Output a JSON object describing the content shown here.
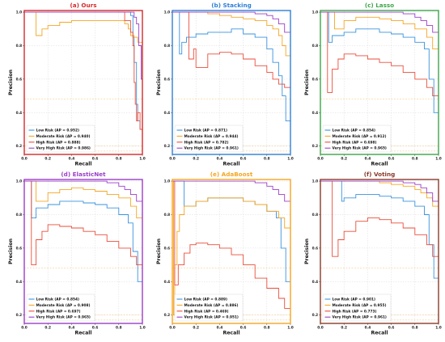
{
  "colors": {
    "low": "#3a93de",
    "moderate": "#f5a623",
    "high": "#ea4d3a",
    "very_high": "#9b3fc8",
    "grid": "#d9d9d9",
    "baseline": "#f2c27a"
  },
  "chart_data": [
    {
      "type": "line",
      "panel_title": "(a) Ours",
      "frame_color": "#d42a2a",
      "xlabel": "Recall",
      "ylabel": "Precision",
      "xlim": [
        0,
        1
      ],
      "ylim": [
        0.15,
        1.01
      ],
      "x_ticks": [
        "0.0",
        "0.2",
        "0.4",
        "0.6",
        "0.8",
        "1.0"
      ],
      "y_ticks": [
        "0.2",
        "0.4",
        "0.6",
        "0.8",
        "1.0"
      ],
      "grid": true,
      "legend_position": "lower-left",
      "series": [
        {
          "key": "low",
          "name": "Low Risk (AP = 0.952)",
          "x": [
            0.0,
            0.08,
            0.2,
            0.4,
            0.6,
            0.75,
            0.85,
            0.9,
            0.92,
            0.93,
            0.95,
            0.96,
            0.98,
            1.0
          ],
          "y": [
            1.0,
            1.0,
            1.0,
            1.0,
            1.0,
            1.0,
            1.0,
            0.98,
            0.85,
            0.7,
            0.45,
            0.35,
            0.3,
            0.27
          ]
        },
        {
          "key": "moderate",
          "name": "Moderate Risk (AP = 0.940)",
          "x": [
            0.0,
            0.07,
            0.1,
            0.15,
            0.2,
            0.3,
            0.4,
            0.5,
            0.6,
            0.7,
            0.8,
            0.85,
            0.88,
            0.9,
            0.93,
            0.96,
            1.0
          ],
          "y": [
            1.0,
            1.0,
            0.86,
            0.9,
            0.92,
            0.94,
            0.95,
            0.95,
            0.95,
            0.95,
            0.95,
            0.93,
            0.9,
            0.86,
            0.85,
            0.82,
            0.78
          ]
        },
        {
          "key": "high",
          "name": "High Risk (AP = 0.888)",
          "x": [
            0.0,
            0.2,
            0.4,
            0.6,
            0.75,
            0.85,
            0.9,
            0.92,
            0.93,
            0.94,
            0.95,
            0.96,
            0.98,
            1.0
          ],
          "y": [
            1.0,
            1.0,
            1.0,
            1.0,
            1.0,
            0.95,
            0.88,
            0.8,
            0.58,
            0.45,
            0.35,
            0.4,
            0.3,
            0.26
          ]
        },
        {
          "key": "very_high",
          "name": "Very High Risk (AP = 0.986)",
          "x": [
            0.0,
            0.2,
            0.4,
            0.6,
            0.8,
            0.9,
            0.93,
            0.95,
            0.97,
            0.99,
            1.0
          ],
          "y": [
            1.0,
            1.0,
            1.0,
            1.0,
            1.0,
            1.0,
            0.97,
            0.93,
            0.8,
            0.6,
            0.62
          ]
        }
      ]
    },
    {
      "type": "line",
      "panel_title": "(b) Stacking",
      "frame_color": "#2f7fd6",
      "xlabel": "Recall",
      "ylabel": "Precision",
      "xlim": [
        0,
        1
      ],
      "ylim": [
        0.15,
        1.01
      ],
      "x_ticks": [
        "0.0",
        "0.2",
        "0.4",
        "0.6",
        "0.8",
        "1.0"
      ],
      "y_ticks": [
        "0.2",
        "0.4",
        "0.6",
        "0.8",
        "1.0"
      ],
      "grid": true,
      "legend_position": "lower-left",
      "series": [
        {
          "key": "low",
          "name": "Low Risk (AP = 0.871)",
          "x": [
            0.0,
            0.04,
            0.06,
            0.08,
            0.12,
            0.2,
            0.3,
            0.4,
            0.5,
            0.6,
            0.7,
            0.8,
            0.85,
            0.9,
            0.93,
            0.96,
            1.0
          ],
          "y": [
            1.0,
            1.0,
            0.75,
            0.82,
            0.85,
            0.87,
            0.88,
            0.88,
            0.9,
            0.87,
            0.85,
            0.78,
            0.7,
            0.62,
            0.5,
            0.35,
            0.2
          ]
        },
        {
          "key": "moderate",
          "name": "Moderate Risk (AP = 0.944)",
          "x": [
            0.0,
            0.1,
            0.2,
            0.3,
            0.4,
            0.5,
            0.6,
            0.7,
            0.8,
            0.85,
            0.9,
            0.93,
            0.96,
            1.0
          ],
          "y": [
            1.0,
            1.0,
            1.0,
            0.99,
            0.98,
            0.97,
            0.96,
            0.95,
            0.92,
            0.9,
            0.86,
            0.8,
            0.74,
            0.68
          ]
        },
        {
          "key": "high",
          "name": "High Risk (AP = 0.782)",
          "x": [
            0.0,
            0.12,
            0.14,
            0.18,
            0.2,
            0.3,
            0.4,
            0.5,
            0.6,
            0.7,
            0.8,
            0.85,
            0.9,
            0.95,
            1.0
          ],
          "y": [
            1.0,
            1.0,
            0.72,
            0.78,
            0.67,
            0.75,
            0.76,
            0.75,
            0.72,
            0.68,
            0.64,
            0.6,
            0.57,
            0.55,
            0.45
          ]
        },
        {
          "key": "very_high",
          "name": "Very High Risk (AP = 0.961)",
          "x": [
            0.0,
            0.2,
            0.4,
            0.6,
            0.7,
            0.8,
            0.85,
            0.9,
            0.95,
            1.0
          ],
          "y": [
            1.0,
            1.0,
            1.0,
            1.0,
            0.99,
            0.98,
            0.96,
            0.93,
            0.88,
            0.8
          ]
        }
      ]
    },
    {
      "type": "line",
      "panel_title": "(c) Lasso",
      "frame_color": "#3ca64a",
      "xlabel": "Recall",
      "ylabel": "Precision",
      "xlim": [
        0,
        1
      ],
      "ylim": [
        0.15,
        1.01
      ],
      "x_ticks": [
        "0.0",
        "0.2",
        "0.4",
        "0.6",
        "0.8",
        "1.0"
      ],
      "y_ticks": [
        "0.2",
        "0.4",
        "0.6",
        "0.8",
        "1.0"
      ],
      "grid": true,
      "legend_position": "lower-left",
      "series": [
        {
          "key": "low",
          "name": "Low Risk (AP = 0.854)",
          "x": [
            0.0,
            0.05,
            0.07,
            0.1,
            0.2,
            0.3,
            0.4,
            0.5,
            0.6,
            0.7,
            0.8,
            0.88,
            0.92,
            0.96,
            1.0
          ],
          "y": [
            1.0,
            1.0,
            0.82,
            0.86,
            0.88,
            0.9,
            0.9,
            0.88,
            0.87,
            0.85,
            0.82,
            0.78,
            0.6,
            0.4,
            0.27
          ]
        },
        {
          "key": "moderate",
          "name": "Moderate Risk (AP = 0.912)",
          "x": [
            0.0,
            0.08,
            0.12,
            0.2,
            0.3,
            0.4,
            0.5,
            0.6,
            0.7,
            0.8,
            0.9,
            0.95,
            1.0
          ],
          "y": [
            1.0,
            1.0,
            0.9,
            0.95,
            0.97,
            0.97,
            0.96,
            0.95,
            0.93,
            0.9,
            0.85,
            0.78,
            0.66
          ]
        },
        {
          "key": "high",
          "name": "High Risk (AP = 0.698)",
          "x": [
            0.0,
            0.04,
            0.06,
            0.1,
            0.15,
            0.2,
            0.3,
            0.4,
            0.5,
            0.6,
            0.7,
            0.8,
            0.9,
            0.95,
            1.0
          ],
          "y": [
            1.0,
            1.0,
            0.52,
            0.66,
            0.72,
            0.75,
            0.74,
            0.72,
            0.7,
            0.68,
            0.64,
            0.6,
            0.55,
            0.5,
            0.38
          ]
        },
        {
          "key": "very_high",
          "name": "Very High Risk (AP = 0.965)",
          "x": [
            0.0,
            0.2,
            0.4,
            0.6,
            0.7,
            0.8,
            0.85,
            0.9,
            0.95,
            1.0
          ],
          "y": [
            1.0,
            1.0,
            1.0,
            1.0,
            0.99,
            0.97,
            0.95,
            0.92,
            0.88,
            0.82
          ]
        }
      ]
    },
    {
      "type": "line",
      "panel_title": "(d) ElasticNet",
      "frame_color": "#9b3fc8",
      "xlabel": "Recall",
      "ylabel": "Precision",
      "xlim": [
        0,
        1
      ],
      "ylim": [
        0.15,
        1.01
      ],
      "x_ticks": [
        "0.0",
        "0.2",
        "0.4",
        "0.6",
        "0.8",
        "1.0"
      ],
      "y_ticks": [
        "0.2",
        "0.4",
        "0.6",
        "0.8",
        "1.0"
      ],
      "grid": true,
      "legend_position": "lower-left",
      "series": [
        {
          "key": "low",
          "name": "Low Risk (AP = 0.854)",
          "x": [
            0.0,
            0.04,
            0.06,
            0.1,
            0.2,
            0.3,
            0.4,
            0.5,
            0.6,
            0.7,
            0.8,
            0.88,
            0.92,
            0.96,
            1.0
          ],
          "y": [
            1.0,
            1.0,
            0.78,
            0.84,
            0.86,
            0.88,
            0.88,
            0.87,
            0.86,
            0.84,
            0.8,
            0.75,
            0.58,
            0.4,
            0.24
          ]
        },
        {
          "key": "moderate",
          "name": "Moderate Risk (AP = 0.908)",
          "x": [
            0.0,
            0.06,
            0.1,
            0.2,
            0.3,
            0.4,
            0.5,
            0.6,
            0.7,
            0.8,
            0.9,
            0.95,
            1.0
          ],
          "y": [
            1.0,
            1.0,
            0.88,
            0.93,
            0.95,
            0.96,
            0.95,
            0.94,
            0.92,
            0.9,
            0.85,
            0.78,
            0.64
          ]
        },
        {
          "key": "high",
          "name": "High Risk (AP = 0.697)",
          "x": [
            0.0,
            0.04,
            0.06,
            0.1,
            0.15,
            0.2,
            0.3,
            0.4,
            0.5,
            0.6,
            0.7,
            0.8,
            0.9,
            0.95,
            1.0
          ],
          "y": [
            1.0,
            1.0,
            0.5,
            0.65,
            0.7,
            0.74,
            0.73,
            0.72,
            0.7,
            0.68,
            0.64,
            0.6,
            0.55,
            0.5,
            0.37
          ]
        },
        {
          "key": "very_high",
          "name": "Very High Risk (AP = 0.965)",
          "x": [
            0.0,
            0.2,
            0.4,
            0.6,
            0.7,
            0.8,
            0.85,
            0.9,
            0.95,
            1.0
          ],
          "y": [
            1.0,
            1.0,
            1.0,
            1.0,
            0.99,
            0.97,
            0.95,
            0.92,
            0.88,
            0.82
          ]
        }
      ]
    },
    {
      "type": "line",
      "panel_title": "(e) AdaBoost",
      "frame_color": "#f5a623",
      "xlabel": "Recall",
      "ylabel": "Precision",
      "xlim": [
        0,
        1
      ],
      "ylim": [
        0.15,
        1.01
      ],
      "x_ticks": [
        "0.0",
        "0.2",
        "0.4",
        "0.6",
        "0.8",
        "1.0"
      ],
      "y_ticks": [
        "0.2",
        "0.4",
        "0.6",
        "0.8",
        "1.0"
      ],
      "grid": true,
      "legend_position": "lower-left",
      "series": [
        {
          "key": "low",
          "name": "Low Risk (AP = 0.889)",
          "x": [
            0.0,
            0.08,
            0.1,
            0.2,
            0.3,
            0.4,
            0.5,
            0.6,
            0.7,
            0.8,
            0.88,
            0.92,
            0.96,
            1.0
          ],
          "y": [
            1.0,
            1.0,
            0.85,
            0.88,
            0.9,
            0.9,
            0.9,
            0.88,
            0.86,
            0.82,
            0.78,
            0.6,
            0.4,
            0.2
          ]
        },
        {
          "key": "moderate",
          "name": "Moderate Risk (AP = 0.886)",
          "x": [
            0.0,
            0.01,
            0.02,
            0.04,
            0.06,
            0.1,
            0.2,
            0.3,
            0.4,
            0.5,
            0.6,
            0.7,
            0.8,
            0.9,
            0.95,
            1.0
          ],
          "y": [
            1.0,
            0.2,
            0.5,
            0.7,
            0.8,
            0.85,
            0.88,
            0.9,
            0.9,
            0.9,
            0.88,
            0.86,
            0.82,
            0.78,
            0.72,
            0.6
          ]
        },
        {
          "key": "high",
          "name": "High Risk (AP = 0.469)",
          "x": [
            0.0,
            0.02,
            0.05,
            0.1,
            0.15,
            0.2,
            0.3,
            0.4,
            0.5,
            0.6,
            0.7,
            0.8,
            0.9,
            0.95,
            1.0
          ],
          "y": [
            1.0,
            0.38,
            0.5,
            0.57,
            0.62,
            0.63,
            0.62,
            0.6,
            0.56,
            0.5,
            0.42,
            0.36,
            0.3,
            0.24,
            0.19
          ]
        },
        {
          "key": "very_high",
          "name": "Very High Risk (AP = 0.951)",
          "x": [
            0.0,
            0.2,
            0.4,
            0.6,
            0.7,
            0.8,
            0.85,
            0.9,
            0.95,
            1.0
          ],
          "y": [
            1.0,
            1.0,
            1.0,
            1.0,
            0.99,
            0.97,
            0.95,
            0.92,
            0.88,
            0.8
          ]
        }
      ]
    },
    {
      "type": "line",
      "panel_title": "(f) Voting",
      "frame_color": "#8a3a2a",
      "xlabel": "Recall",
      "ylabel": "Precision",
      "xlim": [
        0,
        1
      ],
      "ylim": [
        0.15,
        1.01
      ],
      "x_ticks": [
        "0.0",
        "0.2",
        "0.4",
        "0.6",
        "0.8",
        "1.0"
      ],
      "y_ticks": [
        "0.2",
        "0.4",
        "0.6",
        "0.8",
        "1.0"
      ],
      "grid": true,
      "legend_position": "lower-left",
      "series": [
        {
          "key": "low",
          "name": "Low Risk (AP = 0.901)",
          "x": [
            0.0,
            0.15,
            0.18,
            0.2,
            0.3,
            0.4,
            0.5,
            0.6,
            0.7,
            0.8,
            0.88,
            0.92,
            0.96,
            1.0
          ],
          "y": [
            1.0,
            1.0,
            0.88,
            0.9,
            0.92,
            0.92,
            0.91,
            0.9,
            0.88,
            0.85,
            0.8,
            0.62,
            0.42,
            0.27
          ]
        },
        {
          "key": "moderate",
          "name": "Moderate Risk (AP = 0.955)",
          "x": [
            0.0,
            0.2,
            0.4,
            0.5,
            0.6,
            0.7,
            0.8,
            0.85,
            0.9,
            0.95,
            1.0
          ],
          "y": [
            1.0,
            1.0,
            1.0,
            0.99,
            0.98,
            0.97,
            0.95,
            0.93,
            0.9,
            0.85,
            0.78
          ]
        },
        {
          "key": "high",
          "name": "High Risk (AP = 0.773)",
          "x": [
            0.0,
            0.08,
            0.1,
            0.15,
            0.2,
            0.3,
            0.4,
            0.5,
            0.6,
            0.7,
            0.8,
            0.9,
            0.95,
            1.0
          ],
          "y": [
            1.0,
            1.0,
            0.55,
            0.65,
            0.7,
            0.76,
            0.78,
            0.77,
            0.75,
            0.72,
            0.68,
            0.62,
            0.55,
            0.45
          ]
        },
        {
          "key": "very_high",
          "name": "Very High Risk (AP = 0.961)",
          "x": [
            0.0,
            0.2,
            0.4,
            0.6,
            0.7,
            0.8,
            0.85,
            0.9,
            0.95,
            1.0
          ],
          "y": [
            1.0,
            1.0,
            1.0,
            1.0,
            0.99,
            0.98,
            0.96,
            0.93,
            0.88,
            0.82
          ]
        }
      ]
    }
  ]
}
